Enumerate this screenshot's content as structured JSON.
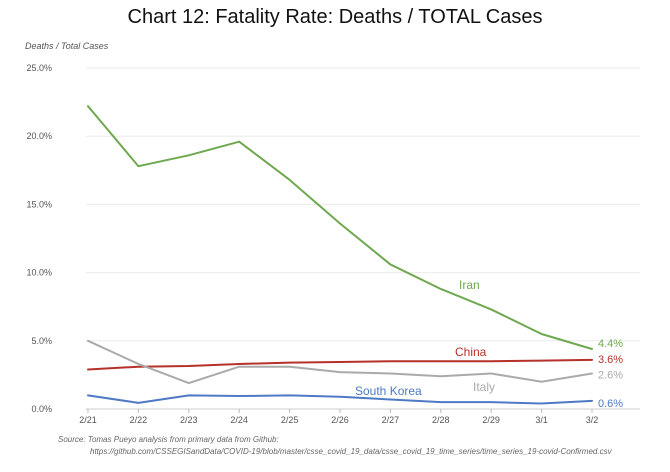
{
  "chart_data": {
    "type": "line",
    "title": "Chart 12: Fatality Rate: Deaths / TOTAL Cases",
    "ylabel": "Deaths / Total Cases",
    "xlabel": "",
    "categories": [
      "2/21",
      "2/22",
      "2/23",
      "2/24",
      "2/25",
      "2/26",
      "2/27",
      "2/28",
      "2/29",
      "3/1",
      "3/2"
    ],
    "ylim": [
      0,
      25
    ],
    "yticks": [
      "0.0%",
      "5.0%",
      "10.0%",
      "15.0%",
      "20.0%",
      "25.0%"
    ],
    "grid": true,
    "series": [
      {
        "name": "Iran",
        "color": "#6FA84F",
        "end_label": "4.4%",
        "values": [
          22.2,
          17.8,
          18.6,
          19.6,
          16.8,
          13.6,
          10.6,
          8.8,
          7.3,
          5.5,
          4.4
        ]
      },
      {
        "name": "China",
        "color": "#B5312A",
        "end_label": "3.6%",
        "values": [
          2.9,
          3.1,
          3.15,
          3.3,
          3.4,
          3.45,
          3.5,
          3.5,
          3.5,
          3.55,
          3.6
        ]
      },
      {
        "name": "Italy",
        "color": "#AAAAAA",
        "end_label": "2.6%",
        "values": [
          5.0,
          3.3,
          1.9,
          3.1,
          3.1,
          2.7,
          2.6,
          2.4,
          2.6,
          2.0,
          2.6
        ]
      },
      {
        "name": "South Korea",
        "color": "#4E79C4",
        "end_label": "0.6%",
        "values": [
          1.0,
          0.45,
          1.0,
          0.95,
          1.0,
          0.9,
          0.7,
          0.5,
          0.5,
          0.4,
          0.6
        ]
      }
    ]
  },
  "source_line1": "Source: Tomas Pueyo analysis from primary data from Github:",
  "source_line2": "https://github.com/CSSEGISandData/COVID-19/blob/master/csse_covid_19_data/csse_covid_19_time_series/time_series_19-covid-Confirmed.csv"
}
